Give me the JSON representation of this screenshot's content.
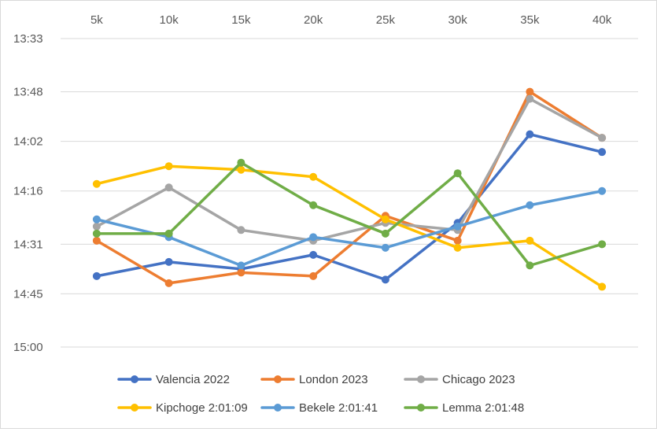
{
  "chart_data": {
    "type": "line",
    "title": "",
    "xlabel": "",
    "ylabel": "",
    "x_axis_position": "top",
    "categories": [
      "5k",
      "10k",
      "15k",
      "20k",
      "25k",
      "30k",
      "35k",
      "40k"
    ],
    "y_axis": {
      "unit": "seconds per split (min:sec)",
      "inverted": true,
      "min_seconds": 813,
      "max_seconds": 900,
      "tick_labels": [
        "13:33",
        "13:48",
        "14:02",
        "14:16",
        "14:31",
        "14:45",
        "15:00"
      ],
      "tick_seconds": [
        813,
        828,
        842,
        856,
        871,
        885,
        900
      ]
    },
    "grid": true,
    "legend_position": "bottom",
    "series": [
      {
        "name": "Valencia 2022",
        "color": "#4472c4",
        "values": [
          880,
          876,
          878,
          874,
          881,
          865,
          840,
          845
        ]
      },
      {
        "name": "London 2023",
        "color": "#ed7d31",
        "values": [
          870,
          882,
          879,
          880,
          863,
          870,
          828,
          841
        ]
      },
      {
        "name": "Chicago 2023",
        "color": "#a5a5a5",
        "values": [
          866,
          855,
          867,
          870,
          865,
          867,
          830,
          841
        ]
      },
      {
        "name": "Kipchoge 2:01:09",
        "color": "#ffc000",
        "values": [
          854,
          849,
          850,
          852,
          864,
          872,
          870,
          883
        ]
      },
      {
        "name": "Bekele 2:01:41",
        "color": "#5b9bd5",
        "values": [
          864,
          869,
          877,
          869,
          872,
          866,
          860,
          856
        ]
      },
      {
        "name": "Lemma 2:01:48",
        "color": "#70ad47",
        "values": [
          868,
          868,
          848,
          860,
          868,
          851,
          877,
          871
        ]
      }
    ]
  }
}
